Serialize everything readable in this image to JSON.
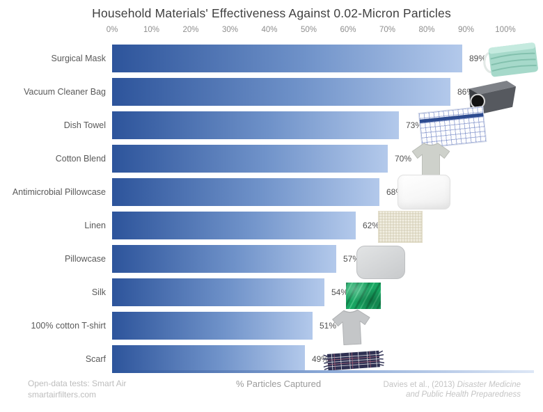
{
  "title": "Household Materials' Effectiveness Against 0.02-Micron Particles",
  "chart_data": {
    "type": "bar",
    "orientation": "horizontal",
    "title": "Household Materials' Effectiveness Against 0.02-Micron Particles",
    "xlabel": "% Particles Captured",
    "xlim": [
      0,
      100
    ],
    "x_ticks": [
      "0%",
      "10%",
      "20%",
      "30%",
      "40%",
      "50%",
      "60%",
      "70%",
      "80%",
      "90%",
      "100%"
    ],
    "grid": false,
    "legend": "none",
    "bar_gradient": [
      "#2d549b",
      "#b3c9eb"
    ],
    "categories": [
      "Surgical Mask",
      "Vacuum Cleaner Bag",
      "Dish Towel",
      "Cotton Blend",
      "Antimicrobial Pillowcase",
      "Linen",
      "Pillowcase",
      "Silk",
      "100% cotton T-shirt",
      "Scarf"
    ],
    "values": [
      89,
      86,
      73,
      70,
      68,
      62,
      57,
      54,
      51,
      49
    ],
    "value_labels": [
      "89%",
      "86%",
      "73%",
      "70%",
      "68%",
      "62%",
      "57%",
      "54%",
      "51%",
      "49%"
    ],
    "icons": [
      "surgical-mask",
      "vacuum-cleaner-bag",
      "dish-towel",
      "cotton-blend-tshirt",
      "antimicrobial-pillowcase",
      "linen-fabric",
      "gray-pillowcase",
      "green-silk",
      "cotton-tshirt",
      "plaid-scarf"
    ]
  },
  "footer": {
    "source_line1": "Open-data tests: Smart Air",
    "source_line2": "smartairfilters.com",
    "citation_prefix": "Davies et al., (2013)",
    "citation_journal_line1": "Disaster Medicine",
    "citation_journal_line2": "and Public Health Preparedness"
  }
}
